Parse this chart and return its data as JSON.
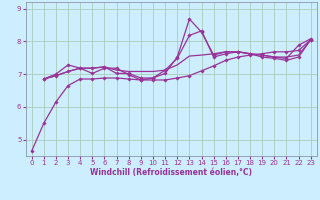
{
  "xlabel": "Windchill (Refroidissement éolien,°C)",
  "bg_color": "#cceeff",
  "grid_color": "#aaccbb",
  "line_color": "#993399",
  "spine_color": "#8899aa",
  "xlim": [
    -0.5,
    23.5
  ],
  "ylim": [
    4.5,
    9.2
  ],
  "yticks": [
    5,
    6,
    7,
    8,
    9
  ],
  "xticks": [
    0,
    1,
    2,
    3,
    4,
    5,
    6,
    7,
    8,
    9,
    10,
    11,
    12,
    13,
    14,
    15,
    16,
    17,
    18,
    19,
    20,
    21,
    22,
    23
  ],
  "tick_labelsize": 5.0,
  "xlabel_fontsize": 5.5,
  "lines": [
    {
      "x": [
        0,
        1,
        2,
        3,
        4,
        5,
        6,
        7,
        8,
        9,
        10,
        11,
        12,
        13,
        14,
        15,
        16,
        17,
        18,
        19,
        20,
        21,
        22,
        23
      ],
      "y": [
        4.65,
        5.5,
        6.15,
        6.65,
        6.85,
        6.85,
        6.88,
        6.88,
        6.85,
        6.82,
        6.82,
        6.82,
        6.88,
        6.95,
        7.1,
        7.25,
        7.42,
        7.52,
        7.58,
        7.62,
        7.68,
        7.68,
        7.72,
        8.05
      ],
      "marker": true,
      "lw": 0.9
    },
    {
      "x": [
        1,
        2,
        3,
        4,
        5,
        6,
        7,
        8,
        9,
        10,
        11,
        12,
        13,
        14,
        15,
        16,
        17,
        18,
        19,
        20,
        21,
        22,
        23
      ],
      "y": [
        6.85,
        6.95,
        7.08,
        7.18,
        7.18,
        7.22,
        7.12,
        7.08,
        7.08,
        7.08,
        7.12,
        7.28,
        7.55,
        7.58,
        7.62,
        7.68,
        7.68,
        7.62,
        7.58,
        7.52,
        7.52,
        7.58,
        8.05
      ],
      "marker": false,
      "lw": 0.9
    },
    {
      "x": [
        1,
        2,
        3,
        4,
        5,
        6,
        7,
        8,
        9,
        10,
        11,
        12,
        13,
        14,
        15,
        16,
        17,
        18,
        19,
        20,
        21,
        22,
        23
      ],
      "y": [
        6.85,
        7.0,
        7.28,
        7.18,
        7.02,
        7.18,
        7.18,
        6.98,
        6.82,
        6.88,
        7.12,
        7.48,
        8.18,
        8.32,
        7.52,
        7.62,
        7.68,
        7.62,
        7.52,
        7.48,
        7.42,
        7.52,
        8.05
      ],
      "marker": true,
      "lw": 0.9
    },
    {
      "x": [
        1,
        2,
        3,
        4,
        5,
        6,
        7,
        8,
        9,
        10,
        11,
        12,
        13,
        14,
        15,
        16,
        17,
        18,
        19,
        20,
        21,
        22,
        23
      ],
      "y": [
        6.85,
        6.95,
        7.08,
        7.18,
        7.18,
        7.22,
        7.02,
        7.02,
        6.88,
        6.88,
        7.02,
        7.52,
        8.68,
        8.28,
        7.58,
        7.68,
        7.68,
        7.62,
        7.58,
        7.52,
        7.48,
        7.88,
        8.08
      ],
      "marker": true,
      "lw": 0.9
    }
  ]
}
